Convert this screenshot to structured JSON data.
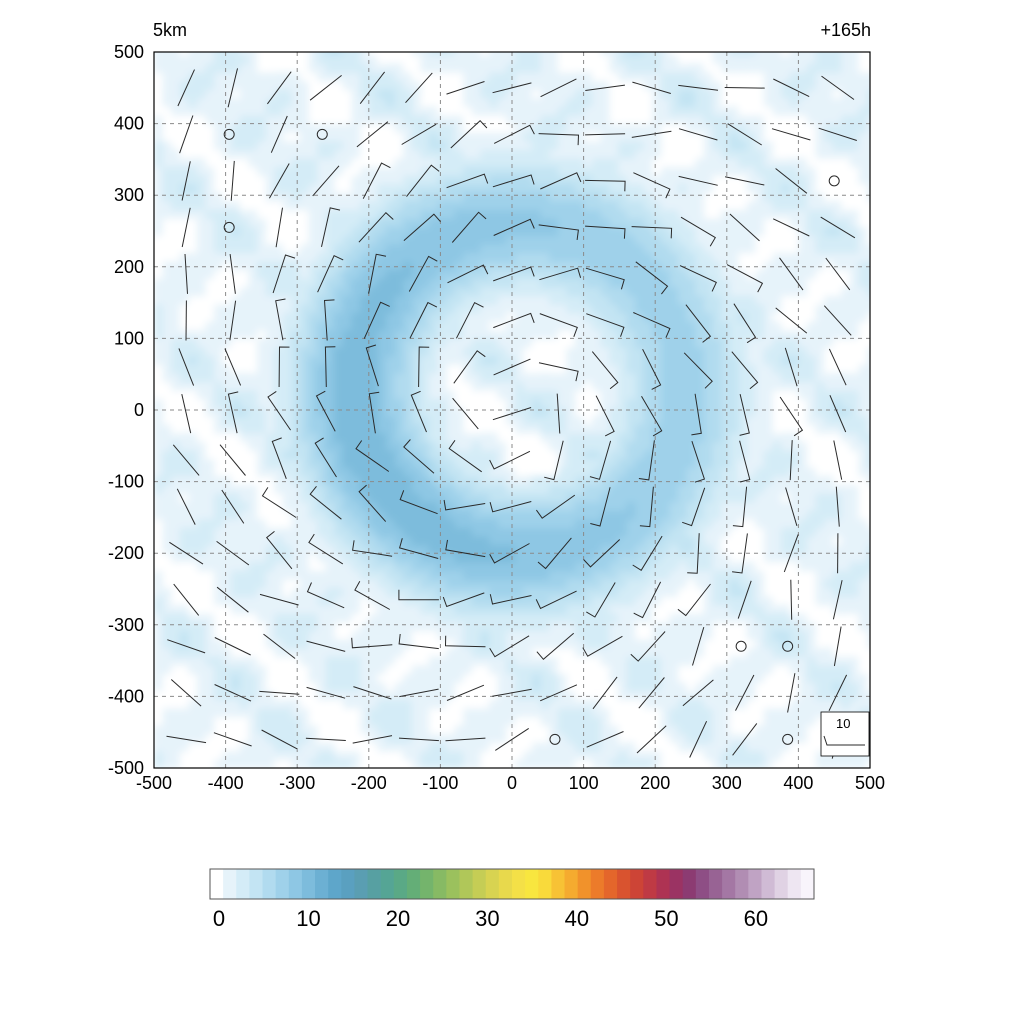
{
  "chart_data": {
    "type": "heatmap",
    "title_left": "5km",
    "title_right": "+165h",
    "xlabel": "",
    "ylabel": "",
    "xlim": [
      -500,
      500
    ],
    "ylim": [
      -500,
      500
    ],
    "x_ticks": [
      -500,
      -400,
      -300,
      -200,
      -100,
      0,
      100,
      200,
      300,
      400,
      500
    ],
    "y_ticks": [
      -500,
      -400,
      -300,
      -200,
      -100,
      0,
      100,
      200,
      300,
      400,
      500
    ],
    "x_tick_labels": [
      "-500",
      "-400",
      "-300",
      "-200",
      "-100",
      "0",
      "100",
      "200",
      "300",
      "400",
      "500"
    ],
    "y_tick_labels": [
      "-500",
      "-400",
      "-300",
      "-200",
      "-100",
      "0",
      "100",
      "200",
      "300",
      "400",
      "500"
    ],
    "grid": true,
    "field": {
      "description_values": "ring of shaded values 5-12 centered near (0,0), radius 100-400, weaker inner eye, open on the north-east",
      "ring_center": [
        0,
        0
      ],
      "ring_radius_peak": 230,
      "ring_peak_value": 11,
      "background_value": 2
    },
    "wind_barbs": {
      "spacing": 60,
      "rotation": "counter-clockwise",
      "reference_speed": 10,
      "reference_label": "10",
      "calm_points": [
        [
          -395,
          385
        ],
        [
          -265,
          385
        ],
        [
          -395,
          255
        ],
        [
          450,
          320
        ],
        [
          320,
          -330
        ],
        [
          385,
          -330
        ],
        [
          60,
          -460
        ],
        [
          385,
          -460
        ]
      ]
    },
    "colorbar": {
      "min": 0,
      "max": 65,
      "tick_values": [
        0,
        10,
        20,
        30,
        40,
        50,
        60
      ],
      "tick_labels": [
        "0",
        "10",
        "20",
        "30",
        "40",
        "50",
        "60"
      ],
      "colors": [
        "#ffffff",
        "#e6f3fa",
        "#d4ecf7",
        "#c3e4f3",
        "#b1dbef",
        "#9fd1ea",
        "#8ec7e4",
        "#7dbcdc",
        "#6cb0d3",
        "#5ea6ca",
        "#5aa0c0",
        "#5a9eb2",
        "#57a0a2",
        "#55a595",
        "#5aa986",
        "#64ae77",
        "#74b46c",
        "#87ba64",
        "#9bc15d",
        "#b0c759",
        "#c5cd55",
        "#d8d351",
        "#e8d94c",
        "#f4e047",
        "#f8e63f",
        "#f9da3b",
        "#f7c235",
        "#f5ab2f",
        "#f1922b",
        "#ec7b2a",
        "#e4662b",
        "#d9532f",
        "#cd4436",
        "#bf3a44",
        "#ae3353",
        "#9b3363",
        "#8c3b72",
        "#8e4e85",
        "#986394",
        "#a477a4",
        "#b18db3",
        "#c0a3c4",
        "#d0bbd5",
        "#e0d2e4",
        "#eee6f2",
        "#f8f4fb"
      ]
    }
  }
}
